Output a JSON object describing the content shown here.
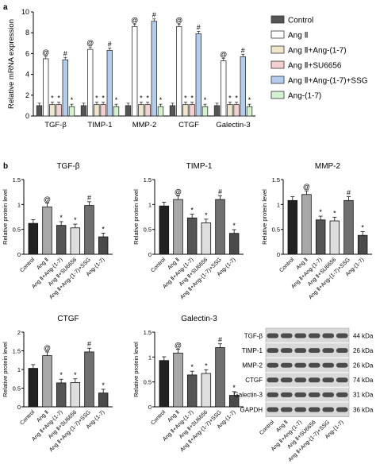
{
  "panels": {
    "a": "a",
    "b": "b"
  },
  "groups": [
    "Control",
    "Ang Ⅱ",
    "Ang Ⅱ+Ang-(1-7)",
    "Ang Ⅱ+SU6656",
    "Ang Ⅱ+Ang-(1-7)+SSG",
    "Ang-(1-7)"
  ],
  "colors": {
    "mrna": [
      "#555555",
      "#ffffff",
      "#efe6cc",
      "#f5d0d0",
      "#b3cdee",
      "#d3f2cf"
    ],
    "protein": [
      "#222222",
      "#a8a8a8",
      "#555555",
      "#dedede",
      "#707070",
      "#4a4a4a"
    ]
  },
  "markers": {
    "vs_control": "@",
    "vs_ang": "*",
    "vs_combo": "#"
  },
  "chart_data": [
    {
      "type": "bar",
      "panel": "a",
      "ylabel": "Relative mRNA expression",
      "ylim": [
        0,
        10
      ],
      "yticks": [
        0,
        2,
        4,
        6,
        8,
        10
      ],
      "categories": [
        "TGF-β",
        "TIMP-1",
        "MMP-2",
        "CTGF",
        "Galectin-3"
      ],
      "series": [
        {
          "name": "Control",
          "values": [
            1.0,
            1.0,
            1.0,
            1.0,
            1.0
          ],
          "markers": [
            "",
            "",
            "",
            "",
            ""
          ]
        },
        {
          "name": "Ang Ⅱ",
          "values": [
            5.5,
            6.4,
            8.6,
            8.6,
            5.3
          ],
          "markers": [
            "@",
            "@",
            "@",
            "@",
            "@"
          ]
        },
        {
          "name": "Ang Ⅱ+Ang-(1-7)",
          "values": [
            1.1,
            1.1,
            1.1,
            1.1,
            1.1
          ],
          "markers": [
            "*",
            "*",
            "*",
            "*",
            "*"
          ]
        },
        {
          "name": "Ang Ⅱ+SU6656",
          "values": [
            1.1,
            1.1,
            1.1,
            1.1,
            1.1
          ],
          "markers": [
            "*",
            "*",
            "*",
            "*",
            "*"
          ]
        },
        {
          "name": "Ang Ⅱ+Ang-(1-7)+SSG",
          "values": [
            5.4,
            6.3,
            9.1,
            7.9,
            5.7
          ],
          "markers": [
            "#",
            "#",
            "#",
            "#",
            "#"
          ]
        },
        {
          "name": "Ang-(1-7)",
          "values": [
            0.9,
            0.9,
            0.9,
            0.9,
            0.9
          ],
          "markers": [
            "*",
            "*",
            "*",
            "*",
            "*"
          ]
        }
      ],
      "legend": "right"
    },
    {
      "type": "bar",
      "panel": "b",
      "title": "TGF-β",
      "ylabel": "Relative protein level",
      "ylim": [
        0,
        1.5
      ],
      "yticks": [
        0.0,
        0.5,
        1.0,
        1.5
      ],
      "values": [
        0.62,
        0.95,
        0.58,
        0.53,
        0.98,
        0.35
      ],
      "markers": [
        "",
        "@",
        "*",
        "*",
        "#",
        "*"
      ]
    },
    {
      "type": "bar",
      "panel": "b",
      "title": "TIMP-1",
      "ylabel": "Relative protein level",
      "ylim": [
        0,
        1.5
      ],
      "yticks": [
        0.0,
        0.5,
        1.0,
        1.5
      ],
      "values": [
        0.97,
        1.1,
        0.73,
        0.63,
        1.1,
        0.42
      ],
      "markers": [
        "",
        "@",
        "*",
        "*",
        "#",
        "*"
      ]
    },
    {
      "type": "bar",
      "panel": "b",
      "title": "MMP-2",
      "ylabel": "Relative protein level",
      "ylim": [
        0,
        1.5
      ],
      "yticks": [
        0.0,
        0.5,
        1.0,
        1.5
      ],
      "values": [
        1.08,
        1.2,
        0.69,
        0.67,
        1.08,
        0.38
      ],
      "markers": [
        "",
        "@",
        "*",
        "*",
        "#",
        "*"
      ]
    },
    {
      "type": "bar",
      "panel": "b",
      "title": "CTGF",
      "ylabel": "Relative protein level",
      "ylim": [
        0,
        2.0
      ],
      "yticks": [
        0.0,
        0.5,
        1.0,
        1.5,
        2.0
      ],
      "values": [
        1.03,
        1.37,
        0.64,
        0.65,
        1.47,
        0.37
      ],
      "markers": [
        "",
        "@",
        "*",
        "*",
        "#",
        "*"
      ]
    },
    {
      "type": "bar",
      "panel": "b",
      "title": "Galectin-3",
      "ylabel": "Relative protein level",
      "ylim": [
        0,
        1.5
      ],
      "yticks": [
        0.0,
        0.5,
        1.0,
        1.5
      ],
      "values": [
        0.93,
        1.08,
        0.64,
        0.67,
        1.19,
        0.23
      ],
      "markers": [
        "",
        "@",
        "*",
        "*",
        "#",
        "*"
      ]
    }
  ],
  "blot": {
    "proteins": [
      "TGF-β",
      "TIMP-1",
      "MMP-2",
      "CTGF",
      "Galectin-3",
      "GAPDH"
    ],
    "weights": [
      "44 kDa",
      "26 kDa",
      "26 kDa",
      "74 kDa",
      "31 kDa",
      "36 kDa"
    ]
  }
}
